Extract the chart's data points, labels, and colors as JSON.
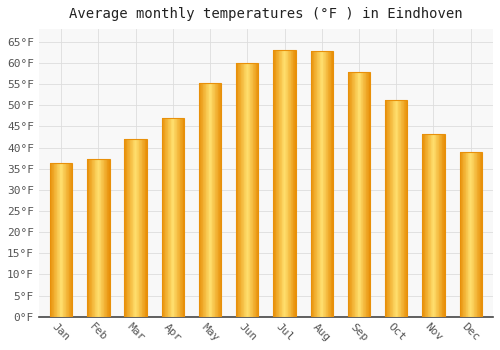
{
  "title": "Average monthly temperatures (°F ) in Eindhoven",
  "months": [
    "Jan",
    "Feb",
    "Mar",
    "Apr",
    "May",
    "Jun",
    "Jul",
    "Aug",
    "Sep",
    "Oct",
    "Nov",
    "Dec"
  ],
  "values": [
    36.3,
    37.2,
    42.1,
    46.9,
    55.2,
    59.9,
    63.1,
    62.8,
    57.9,
    51.3,
    43.2,
    39.0
  ],
  "bar_color_main": "#FFC125",
  "bar_color_light": "#FFE080",
  "bar_color_edge": "#E8900A",
  "background_color": "#FFFFFF",
  "plot_bg_color": "#F8F8F8",
  "grid_color": "#DDDDDD",
  "title_fontsize": 10,
  "tick_fontsize": 8,
  "ylim": [
    0,
    68
  ],
  "yticks": [
    0,
    5,
    10,
    15,
    20,
    25,
    30,
    35,
    40,
    45,
    50,
    55,
    60,
    65
  ]
}
